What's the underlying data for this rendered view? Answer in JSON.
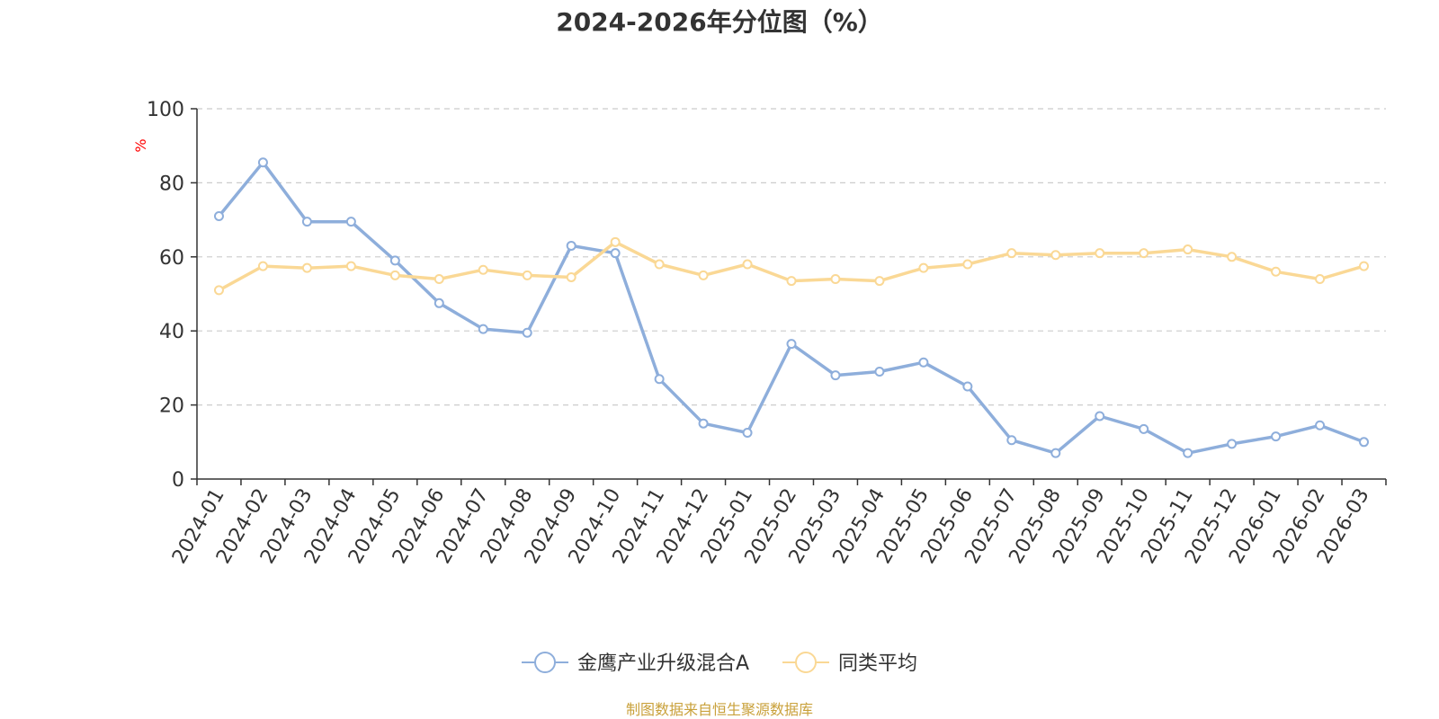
{
  "chart_data": {
    "type": "line",
    "title": "2024-2026年分位图（%）",
    "ylabel": "%",
    "xlabel": "",
    "ylim": [
      0,
      100
    ],
    "yticks": [
      0,
      20,
      40,
      60,
      80,
      100
    ],
    "grid": true,
    "legend_position": "bottom-center",
    "categories": [
      "2024-01",
      "2024-02",
      "2024-03",
      "2024-04",
      "2024-05",
      "2024-06",
      "2024-07",
      "2024-08",
      "2024-09",
      "2024-10",
      "2024-11",
      "2024-12",
      "2025-01",
      "2025-02",
      "2025-03",
      "2025-04",
      "2025-05",
      "2025-06",
      "2025-07",
      "2025-08",
      "2025-09",
      "2025-10",
      "2025-11",
      "2025-12",
      "2026-01",
      "2026-02",
      "2026-03"
    ],
    "series": [
      {
        "name": "金鹰产业升级混合A",
        "color": "#8eaedb",
        "values": [
          71,
          85.5,
          69.5,
          69.5,
          59,
          47.5,
          40.5,
          39.5,
          63,
          61,
          27,
          15,
          12.5,
          36.5,
          28,
          29,
          31.5,
          25,
          10.5,
          7,
          17,
          13.5,
          7,
          9.5,
          11.5,
          14.5,
          10
        ]
      },
      {
        "name": "同类平均",
        "color": "#fad895",
        "values": [
          51,
          57.5,
          57,
          57.5,
          55,
          54,
          56.5,
          55,
          54.5,
          64,
          58,
          55,
          58,
          53.5,
          54,
          53.5,
          57,
          58,
          61,
          60.5,
          61,
          61,
          62,
          60,
          56,
          54,
          57.5
        ]
      }
    ]
  },
  "footer": {
    "source": "制图数据来自恒生聚源数据库"
  }
}
